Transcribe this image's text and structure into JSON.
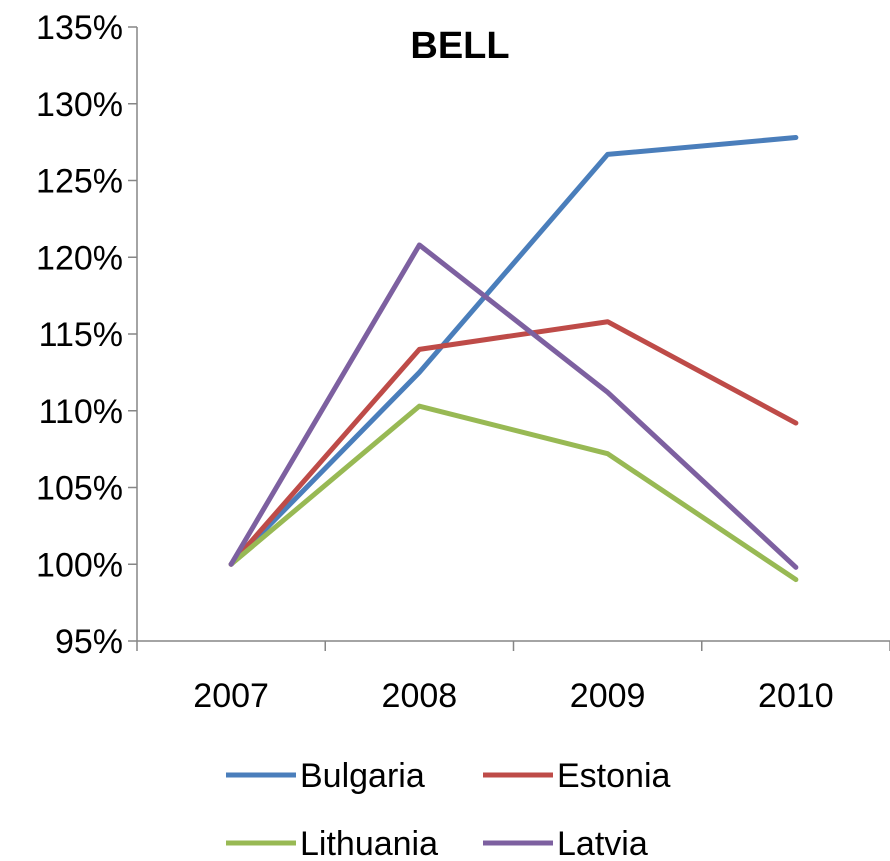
{
  "chart_data": {
    "type": "line",
    "title": "BELL",
    "xlabel": "",
    "ylabel": "",
    "categories": [
      "2007",
      "2008",
      "2009",
      "2010"
    ],
    "yticks": [
      "95%",
      "100%",
      "105%",
      "110%",
      "115%",
      "120%",
      "125%",
      "130%",
      "135%"
    ],
    "ylim": [
      95,
      135
    ],
    "grid": false,
    "legend_position": "bottom",
    "series": [
      {
        "name": "Bulgaria",
        "color": "#4a7ebb",
        "values": [
          100,
          112.5,
          126.7,
          127.8
        ]
      },
      {
        "name": "Estonia",
        "color": "#be4b48",
        "values": [
          100,
          114.0,
          115.8,
          109.2
        ]
      },
      {
        "name": "Lithuania",
        "color": "#98b954",
        "values": [
          100,
          110.3,
          107.2,
          99.0
        ]
      },
      {
        "name": "Latvia",
        "color": "#7d60a0",
        "values": [
          100,
          120.8,
          111.2,
          99.8
        ]
      }
    ]
  }
}
